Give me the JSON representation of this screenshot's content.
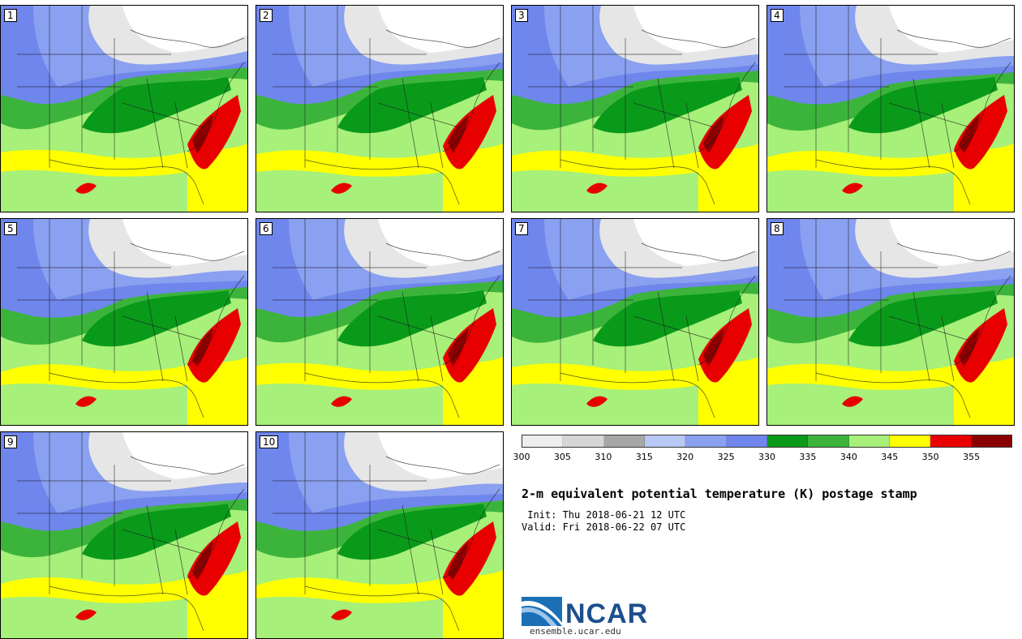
{
  "panels": [
    {
      "label": "1"
    },
    {
      "label": "2"
    },
    {
      "label": "3"
    },
    {
      "label": "4"
    },
    {
      "label": "5"
    },
    {
      "label": "6"
    },
    {
      "label": "7"
    },
    {
      "label": "8"
    },
    {
      "label": "9"
    },
    {
      "label": "10"
    }
  ],
  "colorbar": {
    "colors": [
      "#eeeeee",
      "#d6d6d6",
      "#a6a6a6",
      "#b8c8f5",
      "#8aa0f0",
      "#6f86ec",
      "#0a9a1a",
      "#3cb43c",
      "#a7f07a",
      "#ffff00",
      "#e80000",
      "#8a0000"
    ],
    "ticks": [
      "300",
      "305",
      "310",
      "315",
      "320",
      "325",
      "330",
      "335",
      "340",
      "345",
      "350",
      "355"
    ]
  },
  "title": "2-m equivalent potential temperature (K) postage stamp",
  "init": " Init: Thu 2018-06-21 12 UTC",
  "valid": "Valid: Fri 2018-06-22 07 UTC",
  "logo": {
    "text": "NCAR",
    "url": "ensemble.ucar.edu"
  }
}
